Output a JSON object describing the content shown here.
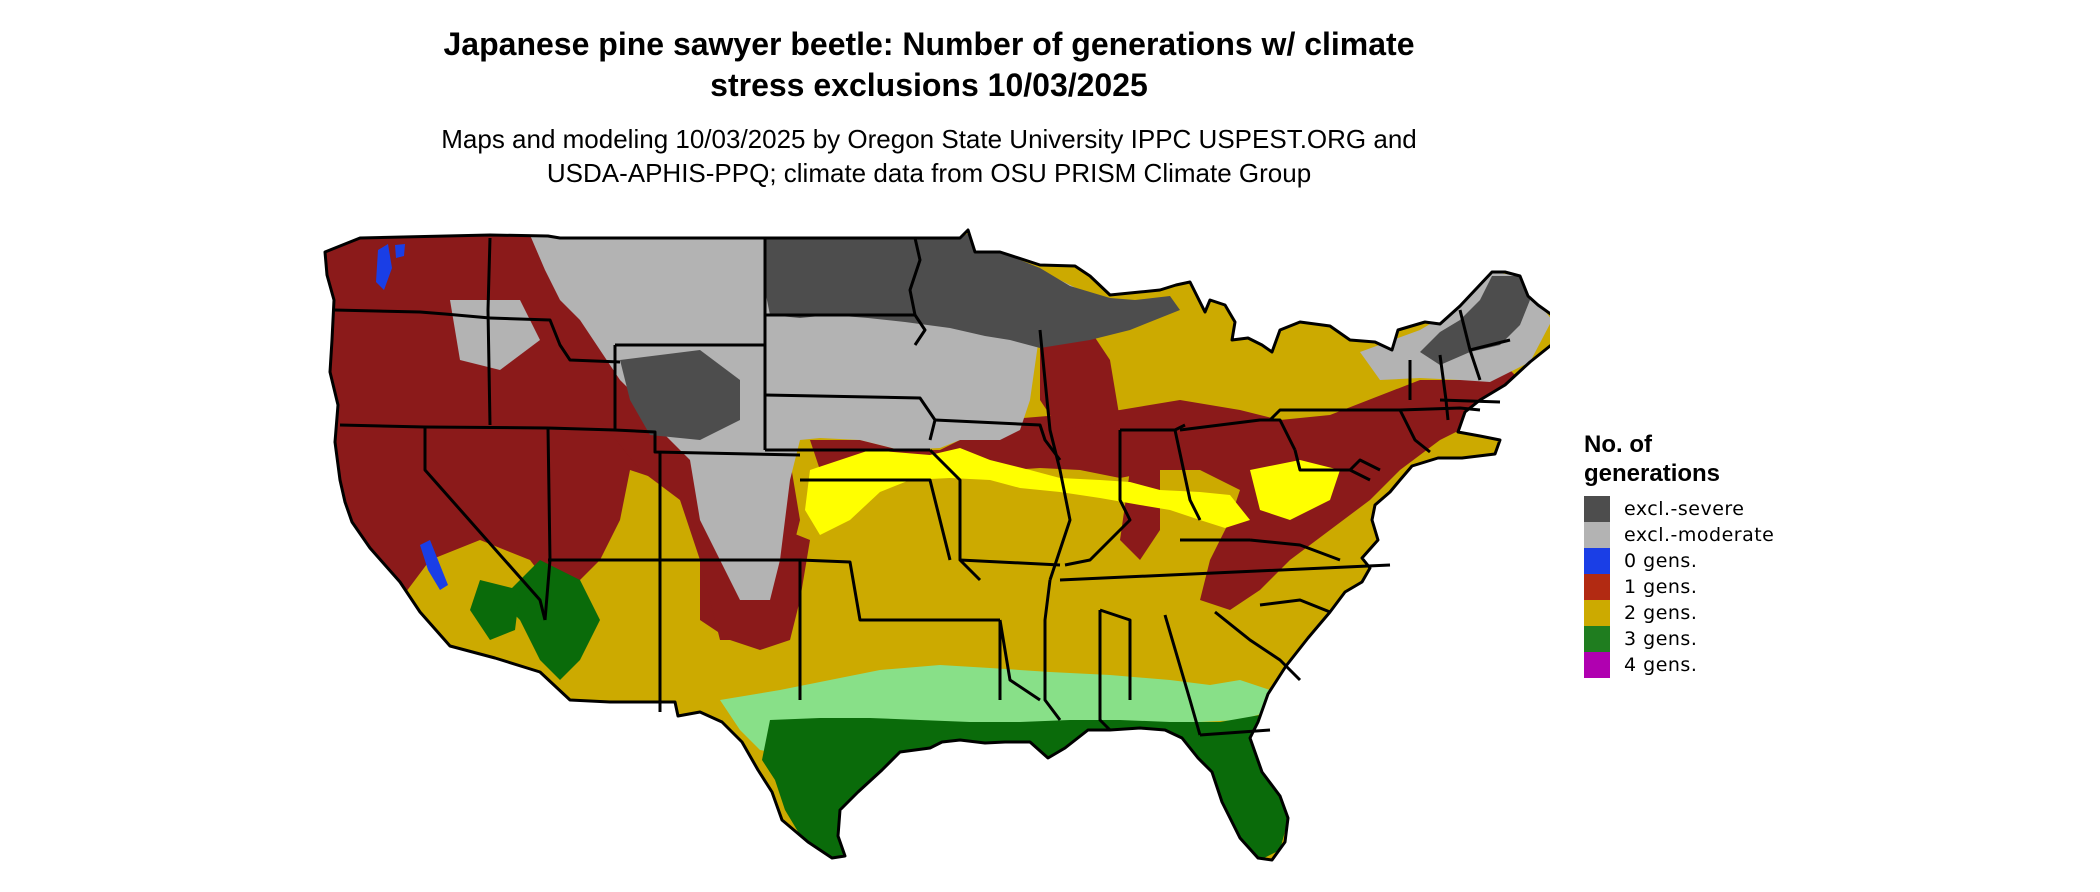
{
  "title": {
    "line1": "Japanese pine sawyer beetle: Number of generations w/ climate",
    "line2": "stress exclusions 10/03/2025"
  },
  "subtitle": {
    "line1": "Maps and modeling 10/03/2025 by Oregon State University IPPC USPEST.ORG and",
    "line2": "USDA-APHIS-PPQ; climate data from OSU PRISM Climate Group"
  },
  "legend": {
    "title_line1": "No. of",
    "title_line2": "generations",
    "items": [
      {
        "label": "excl.-severe",
        "color": "#4d4d4d"
      },
      {
        "label": "excl.-moderate",
        "color": "#b3b3b3"
      },
      {
        "label": "0 gens.",
        "color": "#1a3ee6"
      },
      {
        "label": "1 gens.",
        "color": "#b22a12"
      },
      {
        "label": "2 gens.",
        "color": "#ccaa00"
      },
      {
        "label": "3 gens.",
        "color": "#1f7d1f"
      },
      {
        "label": "4 gens.",
        "color": "#b000b0"
      }
    ]
  },
  "map": {
    "region": "conterminous United States",
    "palette": {
      "excl_severe": "#4d4d4d",
      "excl_moderate": "#b3b3b3",
      "gens_0": "#1a3ee6",
      "gens_1": "#8b1a1a",
      "gens_2": "#ccaa00",
      "gens_2_light": "#ffff00",
      "gens_3": "#0a6b0a",
      "gens_3_light": "#88e088",
      "gens_4": "#cc00cc",
      "border": "#000000"
    }
  }
}
